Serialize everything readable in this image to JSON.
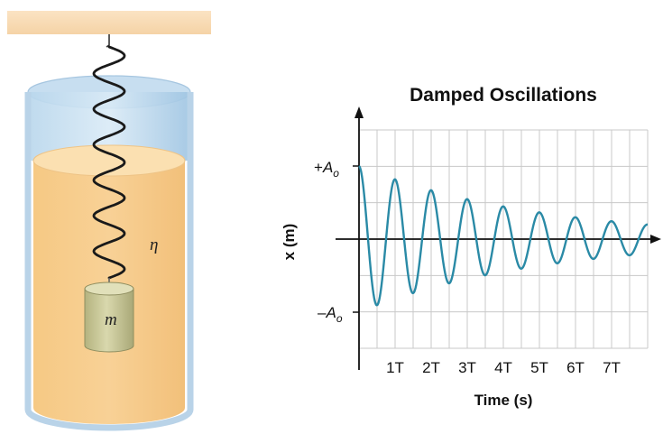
{
  "figure": {
    "eta_label": "η",
    "mass_label": "m"
  },
  "chart_data": {
    "type": "line",
    "title": "Damped Oscillations",
    "xlabel": "Time (s)",
    "ylabel": "x (m)",
    "x_tick_labels": [
      "1T",
      "2T",
      "3T",
      "4T",
      "5T",
      "6T",
      "7T"
    ],
    "y_tick_labels": {
      "top_sign": "+",
      "top_symbol": "A",
      "top_subscript": "o",
      "bottom_sign": "–",
      "bottom_symbol": "A",
      "bottom_subscript": "o"
    },
    "xlim": [
      0,
      8
    ],
    "ylim": [
      -1,
      1
    ],
    "amplitude": 1,
    "period": 1,
    "decay_to_amplitude_at_8T": 0.2,
    "grid": true,
    "curve_color": "#2a8aa6"
  }
}
